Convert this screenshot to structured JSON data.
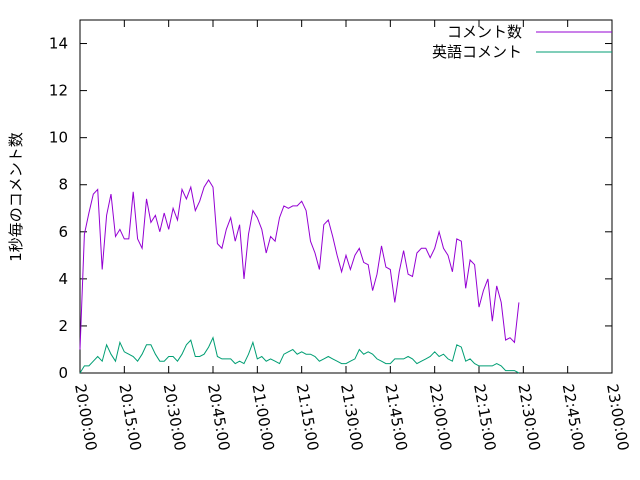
{
  "chart_data": {
    "type": "line",
    "title": "",
    "xlabel": "",
    "ylabel": "1秒毎のコメント数",
    "ylim": [
      0,
      15
    ],
    "yticks": [
      0,
      2,
      4,
      6,
      8,
      10,
      12,
      14
    ],
    "xlim": [
      "20:00:00",
      "23:00:00"
    ],
    "xticks": [
      "20:00:00",
      "20:15:00",
      "20:30:00",
      "20:45:00",
      "21:00:00",
      "21:15:00",
      "21:30:00",
      "21:45:00",
      "22:00:00",
      "22:15:00",
      "22:30:00",
      "22:45:00",
      "23:00:00"
    ],
    "grid": false,
    "legend_position": "top-right",
    "sample_interval": "00:01:30",
    "x_start": "20:00:00",
    "series": [
      {
        "name": "コメント数",
        "color": "#9400d3",
        "values": [
          1.0,
          5.9,
          6.8,
          7.6,
          7.8,
          4.4,
          6.7,
          7.6,
          5.8,
          6.1,
          5.7,
          5.7,
          7.7,
          5.7,
          5.3,
          7.4,
          6.4,
          6.7,
          6.0,
          6.8,
          6.1,
          7.0,
          6.5,
          7.8,
          7.4,
          7.9,
          6.9,
          7.3,
          7.9,
          8.2,
          7.9,
          5.5,
          5.3,
          6.1,
          6.6,
          5.6,
          6.3,
          4.0,
          5.9,
          6.9,
          6.6,
          6.1,
          5.1,
          5.8,
          5.6,
          6.6,
          7.1,
          7.0,
          7.1,
          7.1,
          7.3,
          6.9,
          5.6,
          5.1,
          4.4,
          6.3,
          6.5,
          5.8,
          5.0,
          4.3,
          5.0,
          4.4,
          5.0,
          5.3,
          4.7,
          4.6,
          3.5,
          4.2,
          5.4,
          4.5,
          4.4,
          3.0,
          4.3,
          5.2,
          4.2,
          4.1,
          5.1,
          5.3,
          5.3,
          4.9,
          5.3,
          6.0,
          5.3,
          5.0,
          4.3,
          5.7,
          5.6,
          3.6,
          4.8,
          4.6,
          2.8,
          3.5,
          4.0,
          2.2,
          3.7,
          3.0,
          1.4,
          1.5,
          1.3,
          3.0
        ]
      },
      {
        "name": "英語コメント",
        "color": "#009e73",
        "values": [
          0.0,
          0.3,
          0.3,
          0.5,
          0.7,
          0.5,
          1.2,
          0.8,
          0.5,
          1.3,
          0.9,
          0.8,
          0.7,
          0.5,
          0.8,
          1.2,
          1.2,
          0.8,
          0.5,
          0.5,
          0.7,
          0.7,
          0.5,
          0.8,
          1.2,
          1.4,
          0.7,
          0.7,
          0.8,
          1.1,
          1.5,
          0.7,
          0.6,
          0.6,
          0.6,
          0.4,
          0.5,
          0.4,
          0.8,
          1.3,
          0.6,
          0.7,
          0.5,
          0.6,
          0.5,
          0.4,
          0.8,
          0.9,
          1.0,
          0.8,
          0.9,
          0.8,
          0.8,
          0.7,
          0.5,
          0.6,
          0.7,
          0.6,
          0.5,
          0.4,
          0.4,
          0.5,
          0.6,
          1.0,
          0.8,
          0.9,
          0.8,
          0.6,
          0.5,
          0.4,
          0.4,
          0.6,
          0.6,
          0.6,
          0.7,
          0.6,
          0.4,
          0.5,
          0.6,
          0.7,
          0.9,
          0.7,
          0.8,
          0.6,
          0.5,
          1.2,
          1.1,
          0.5,
          0.6,
          0.4,
          0.3,
          0.3,
          0.3,
          0.3,
          0.4,
          0.3,
          0.1,
          0.1,
          0.1,
          0.0
        ]
      }
    ]
  }
}
